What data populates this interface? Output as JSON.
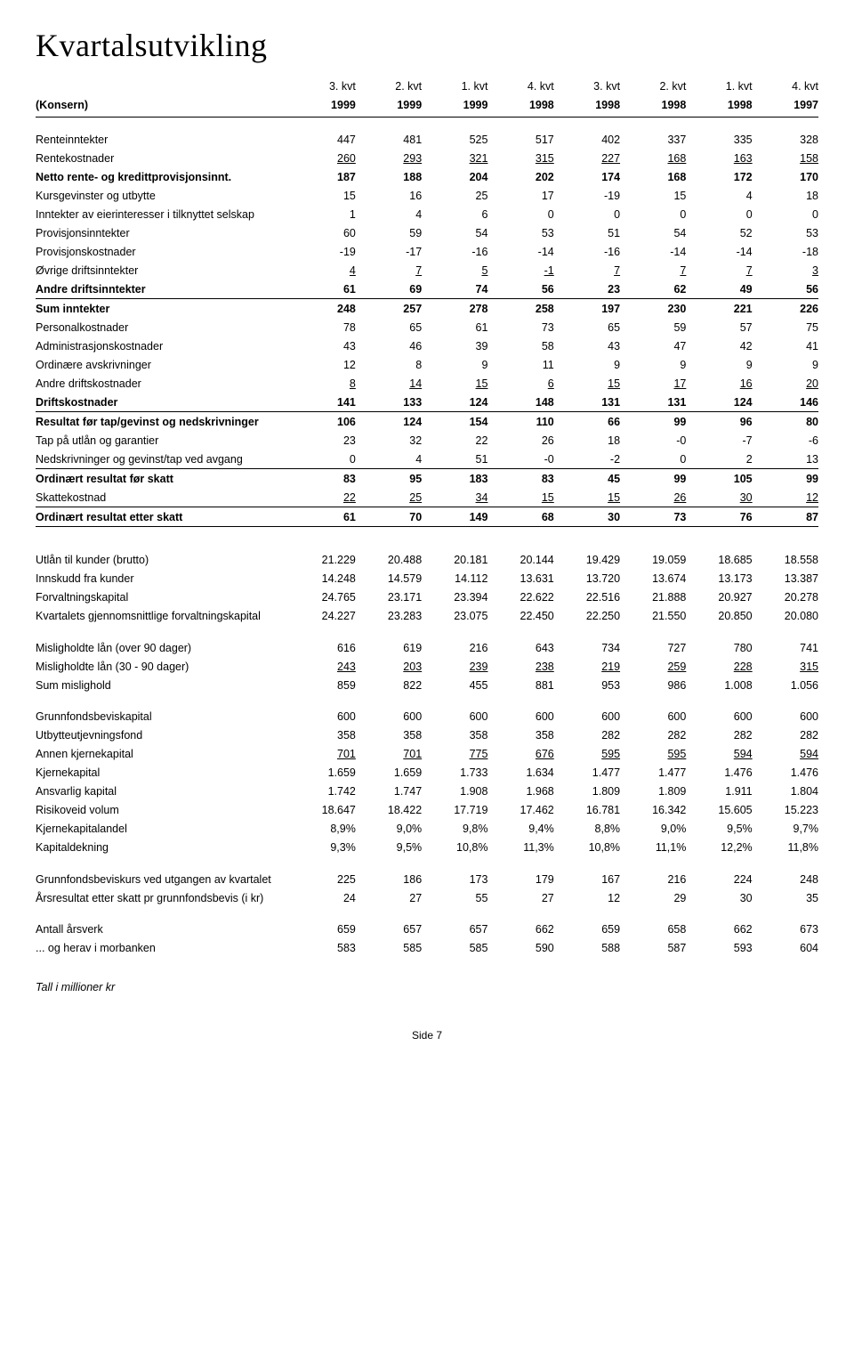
{
  "title": "Kvartalsutvikling",
  "konsern_label": "(Konsern)",
  "header_top": [
    "3. kvt",
    "2. kvt",
    "1. kvt",
    "4. kvt",
    "3. kvt",
    "2. kvt",
    "1. kvt",
    "4. kvt"
  ],
  "header_bottom": [
    "1999",
    "1999",
    "1999",
    "1998",
    "1998",
    "1998",
    "1998",
    "1997"
  ],
  "main": [
    {
      "label": "Renteinntekter",
      "v": [
        "447",
        "481",
        "525",
        "517",
        "402",
        "337",
        "335",
        "328"
      ],
      "gap": true
    },
    {
      "label": "Rentekostnader",
      "v": [
        "260",
        "293",
        "321",
        "315",
        "227",
        "168",
        "163",
        "158"
      ],
      "under": true
    },
    {
      "label": "Netto rente- og kredittprovisjonsinnt.",
      "v": [
        "187",
        "188",
        "204",
        "202",
        "174",
        "168",
        "172",
        "170"
      ],
      "bold": true
    },
    {
      "label": "Kursgevinster og utbytte",
      "v": [
        "15",
        "16",
        "25",
        "17",
        "-19",
        "15",
        "4",
        "18"
      ]
    },
    {
      "label": "Inntekter av eierinteresser i tilknyttet selskap",
      "v": [
        "1",
        "4",
        "6",
        "0",
        "0",
        "0",
        "0",
        "0"
      ]
    },
    {
      "label": "Provisjonsinntekter",
      "v": [
        "60",
        "59",
        "54",
        "53",
        "51",
        "54",
        "52",
        "53"
      ]
    },
    {
      "label": "Provisjonskostnader",
      "v": [
        "-19",
        "-17",
        "-16",
        "-14",
        "-16",
        "-14",
        "-14",
        "-18"
      ]
    },
    {
      "label": "Øvrige driftsinntekter",
      "v": [
        "4",
        "7",
        "5",
        "-1",
        "7",
        "7",
        "7",
        "3"
      ],
      "under": true
    },
    {
      "label": "Andre driftsinntekter",
      "v": [
        "61",
        "69",
        "74",
        "56",
        "23",
        "62",
        "49",
        "56"
      ],
      "bold": true
    },
    {
      "label": "Sum inntekter",
      "v": [
        "248",
        "257",
        "278",
        "258",
        "197",
        "230",
        "221",
        "226"
      ],
      "bold": true,
      "lineAbove": true
    },
    {
      "label": "Personalkostnader",
      "v": [
        "78",
        "65",
        "61",
        "73",
        "65",
        "59",
        "57",
        "75"
      ]
    },
    {
      "label": "Administrasjonskostnader",
      "v": [
        "43",
        "46",
        "39",
        "58",
        "43",
        "47",
        "42",
        "41"
      ]
    },
    {
      "label": "Ordinære avskrivninger",
      "v": [
        "12",
        "8",
        "9",
        "11",
        "9",
        "9",
        "9",
        "9"
      ]
    },
    {
      "label": "Andre driftskostnader",
      "v": [
        "8",
        "14",
        "15",
        "6",
        "15",
        "17",
        "16",
        "20"
      ],
      "under": true
    },
    {
      "label": "Driftskostnader",
      "v": [
        "141",
        "133",
        "124",
        "148",
        "131",
        "131",
        "124",
        "146"
      ],
      "bold": true
    },
    {
      "label": "Resultat før tap/gevinst og nedskrivninger",
      "v": [
        "106",
        "124",
        "154",
        "110",
        "66",
        "99",
        "96",
        "80"
      ],
      "bold": true,
      "lineAbove": true
    },
    {
      "label": "Tap på utlån og garantier",
      "v": [
        "23",
        "32",
        "22",
        "26",
        "18",
        "-0",
        "-7",
        "-6"
      ]
    },
    {
      "label": "Nedskrivninger og gevinst/tap ved avgang",
      "v": [
        "0",
        "4",
        "51",
        "-0",
        "-2",
        "0",
        "2",
        "13"
      ]
    },
    {
      "label": "Ordinært resultat før skatt",
      "v": [
        "83",
        "95",
        "183",
        "83",
        "45",
        "99",
        "105",
        "99"
      ],
      "bold": true,
      "lineAbove": true
    },
    {
      "label": "Skattekostnad",
      "v": [
        "22",
        "25",
        "34",
        "15",
        "15",
        "26",
        "30",
        "12"
      ],
      "under": true
    },
    {
      "label": "Ordinært resultat etter skatt",
      "v": [
        "61",
        "70",
        "149",
        "68",
        "30",
        "73",
        "76",
        "87"
      ],
      "bold": true,
      "lineAbove": true,
      "lineBelow": true
    }
  ],
  "block2": [
    {
      "label": "Utlån til kunder (brutto)",
      "v": [
        "21.229",
        "20.488",
        "20.181",
        "20.144",
        "19.429",
        "19.059",
        "18.685",
        "18.558"
      ],
      "section": true
    },
    {
      "label": "Innskudd fra kunder",
      "v": [
        "14.248",
        "14.579",
        "14.112",
        "13.631",
        "13.720",
        "13.674",
        "13.173",
        "13.387"
      ]
    },
    {
      "label": "Forvaltningskapital",
      "v": [
        "24.765",
        "23.171",
        "23.394",
        "22.622",
        "22.516",
        "21.888",
        "20.927",
        "20.278"
      ]
    },
    {
      "label": "Kvartalets gjennomsnittlige forvaltningskapital",
      "v": [
        "24.227",
        "23.283",
        "23.075",
        "22.450",
        "22.250",
        "21.550",
        "20.850",
        "20.080"
      ]
    }
  ],
  "block3": [
    {
      "label": "Misligholdte lån (over 90 dager)",
      "v": [
        "616",
        "619",
        "216",
        "643",
        "734",
        "727",
        "780",
        "741"
      ],
      "gap": true
    },
    {
      "label": "Misligholdte lån (30 - 90 dager)",
      "v": [
        "243",
        "203",
        "239",
        "238",
        "219",
        "259",
        "228",
        "315"
      ],
      "under": true
    },
    {
      "label": "Sum mislighold",
      "v": [
        "859",
        "822",
        "455",
        "881",
        "953",
        "986",
        "1.008",
        "1.056"
      ]
    }
  ],
  "block4": [
    {
      "label": "Grunnfondsbeviskapital",
      "v": [
        "600",
        "600",
        "600",
        "600",
        "600",
        "600",
        "600",
        "600"
      ],
      "gap": true
    },
    {
      "label": "Utbytteutjevningsfond",
      "v": [
        "358",
        "358",
        "358",
        "358",
        "282",
        "282",
        "282",
        "282"
      ]
    },
    {
      "label": "Annen kjernekapital",
      "v": [
        "701",
        "701",
        "775",
        "676",
        "595",
        "595",
        "594",
        "594"
      ],
      "under": true
    },
    {
      "label": "Kjernekapital",
      "v": [
        "1.659",
        "1.659",
        "1.733",
        "1.634",
        "1.477",
        "1.477",
        "1.476",
        "1.476"
      ]
    },
    {
      "label": "Ansvarlig kapital",
      "v": [
        "1.742",
        "1.747",
        "1.908",
        "1.968",
        "1.809",
        "1.809",
        "1.911",
        "1.804"
      ]
    },
    {
      "label": "Risikoveid volum",
      "v": [
        "18.647",
        "18.422",
        "17.719",
        "17.462",
        "16.781",
        "16.342",
        "15.605",
        "15.223"
      ]
    },
    {
      "label": "Kjernekapitalandel",
      "v": [
        "8,9%",
        "9,0%",
        "9,8%",
        "9,4%",
        "8,8%",
        "9,0%",
        "9,5%",
        "9,7%"
      ]
    },
    {
      "label": "Kapitaldekning",
      "v": [
        "9,3%",
        "9,5%",
        "10,8%",
        "11,3%",
        "10,8%",
        "11,1%",
        "12,2%",
        "11,8%"
      ]
    }
  ],
  "block5": [
    {
      "label": "Grunnfondsbeviskurs ved utgangen av kvartalet",
      "v": [
        "225",
        "186",
        "173",
        "179",
        "167",
        "216",
        "224",
        "248"
      ],
      "gap": true
    },
    {
      "label": "Årsresultat etter skatt pr grunnfondsbevis (i kr)",
      "v": [
        "24",
        "27",
        "55",
        "27",
        "12",
        "29",
        "30",
        "35"
      ]
    }
  ],
  "block6": [
    {
      "label": "Antall årsverk",
      "v": [
        "659",
        "657",
        "657",
        "662",
        "659",
        "658",
        "662",
        "673"
      ],
      "gap": true
    },
    {
      "label": "... og herav i morbanken",
      "v": [
        "583",
        "585",
        "585",
        "590",
        "588",
        "587",
        "593",
        "604"
      ]
    }
  ],
  "footer_note": "Tall i millioner kr",
  "page_footer": "Side  7"
}
